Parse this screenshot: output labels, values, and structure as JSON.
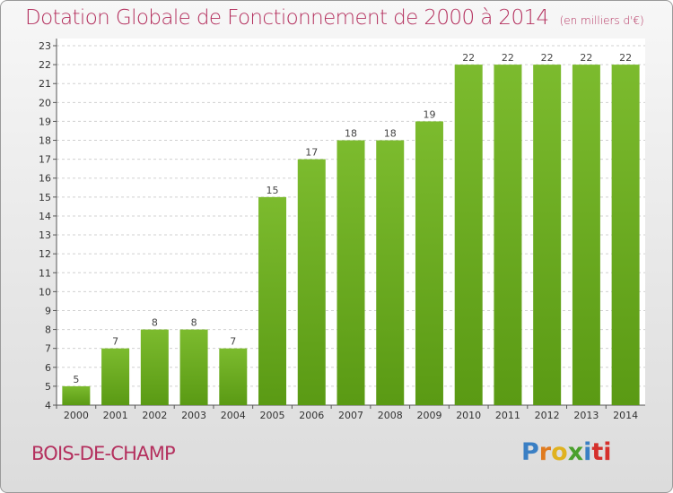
{
  "header": {
    "title": "Dotation Globale de Fonctionnement de 2000 à 2014",
    "subtitle": "(en milliers d'€)"
  },
  "footer": {
    "commune": "BOIS-DE-CHAMP",
    "logo": [
      "P",
      "r",
      "o",
      "x",
      "i",
      "ti"
    ]
  },
  "colors": {
    "accent": "#b4305e",
    "bar": "#7cbb2e",
    "bar_dark": "#5a9a14"
  },
  "chart_data": {
    "type": "bar",
    "categories": [
      "2000",
      "2001",
      "2002",
      "2003",
      "2004",
      "2005",
      "2006",
      "2007",
      "2008",
      "2009",
      "2010",
      "2011",
      "2012",
      "2013",
      "2014"
    ],
    "values": [
      5,
      7,
      8,
      8,
      7,
      15,
      17,
      18,
      18,
      19,
      22,
      22,
      22,
      22,
      22
    ],
    "title": "Dotation Globale de Fonctionnement de 2000 à 2014",
    "subtitle": "(en milliers d'€)",
    "ylim": [
      4,
      23
    ],
    "yticks": [
      4,
      5,
      6,
      7,
      8,
      9,
      10,
      11,
      12,
      13,
      14,
      15,
      16,
      17,
      18,
      19,
      20,
      21,
      22,
      23
    ],
    "grid": true
  }
}
